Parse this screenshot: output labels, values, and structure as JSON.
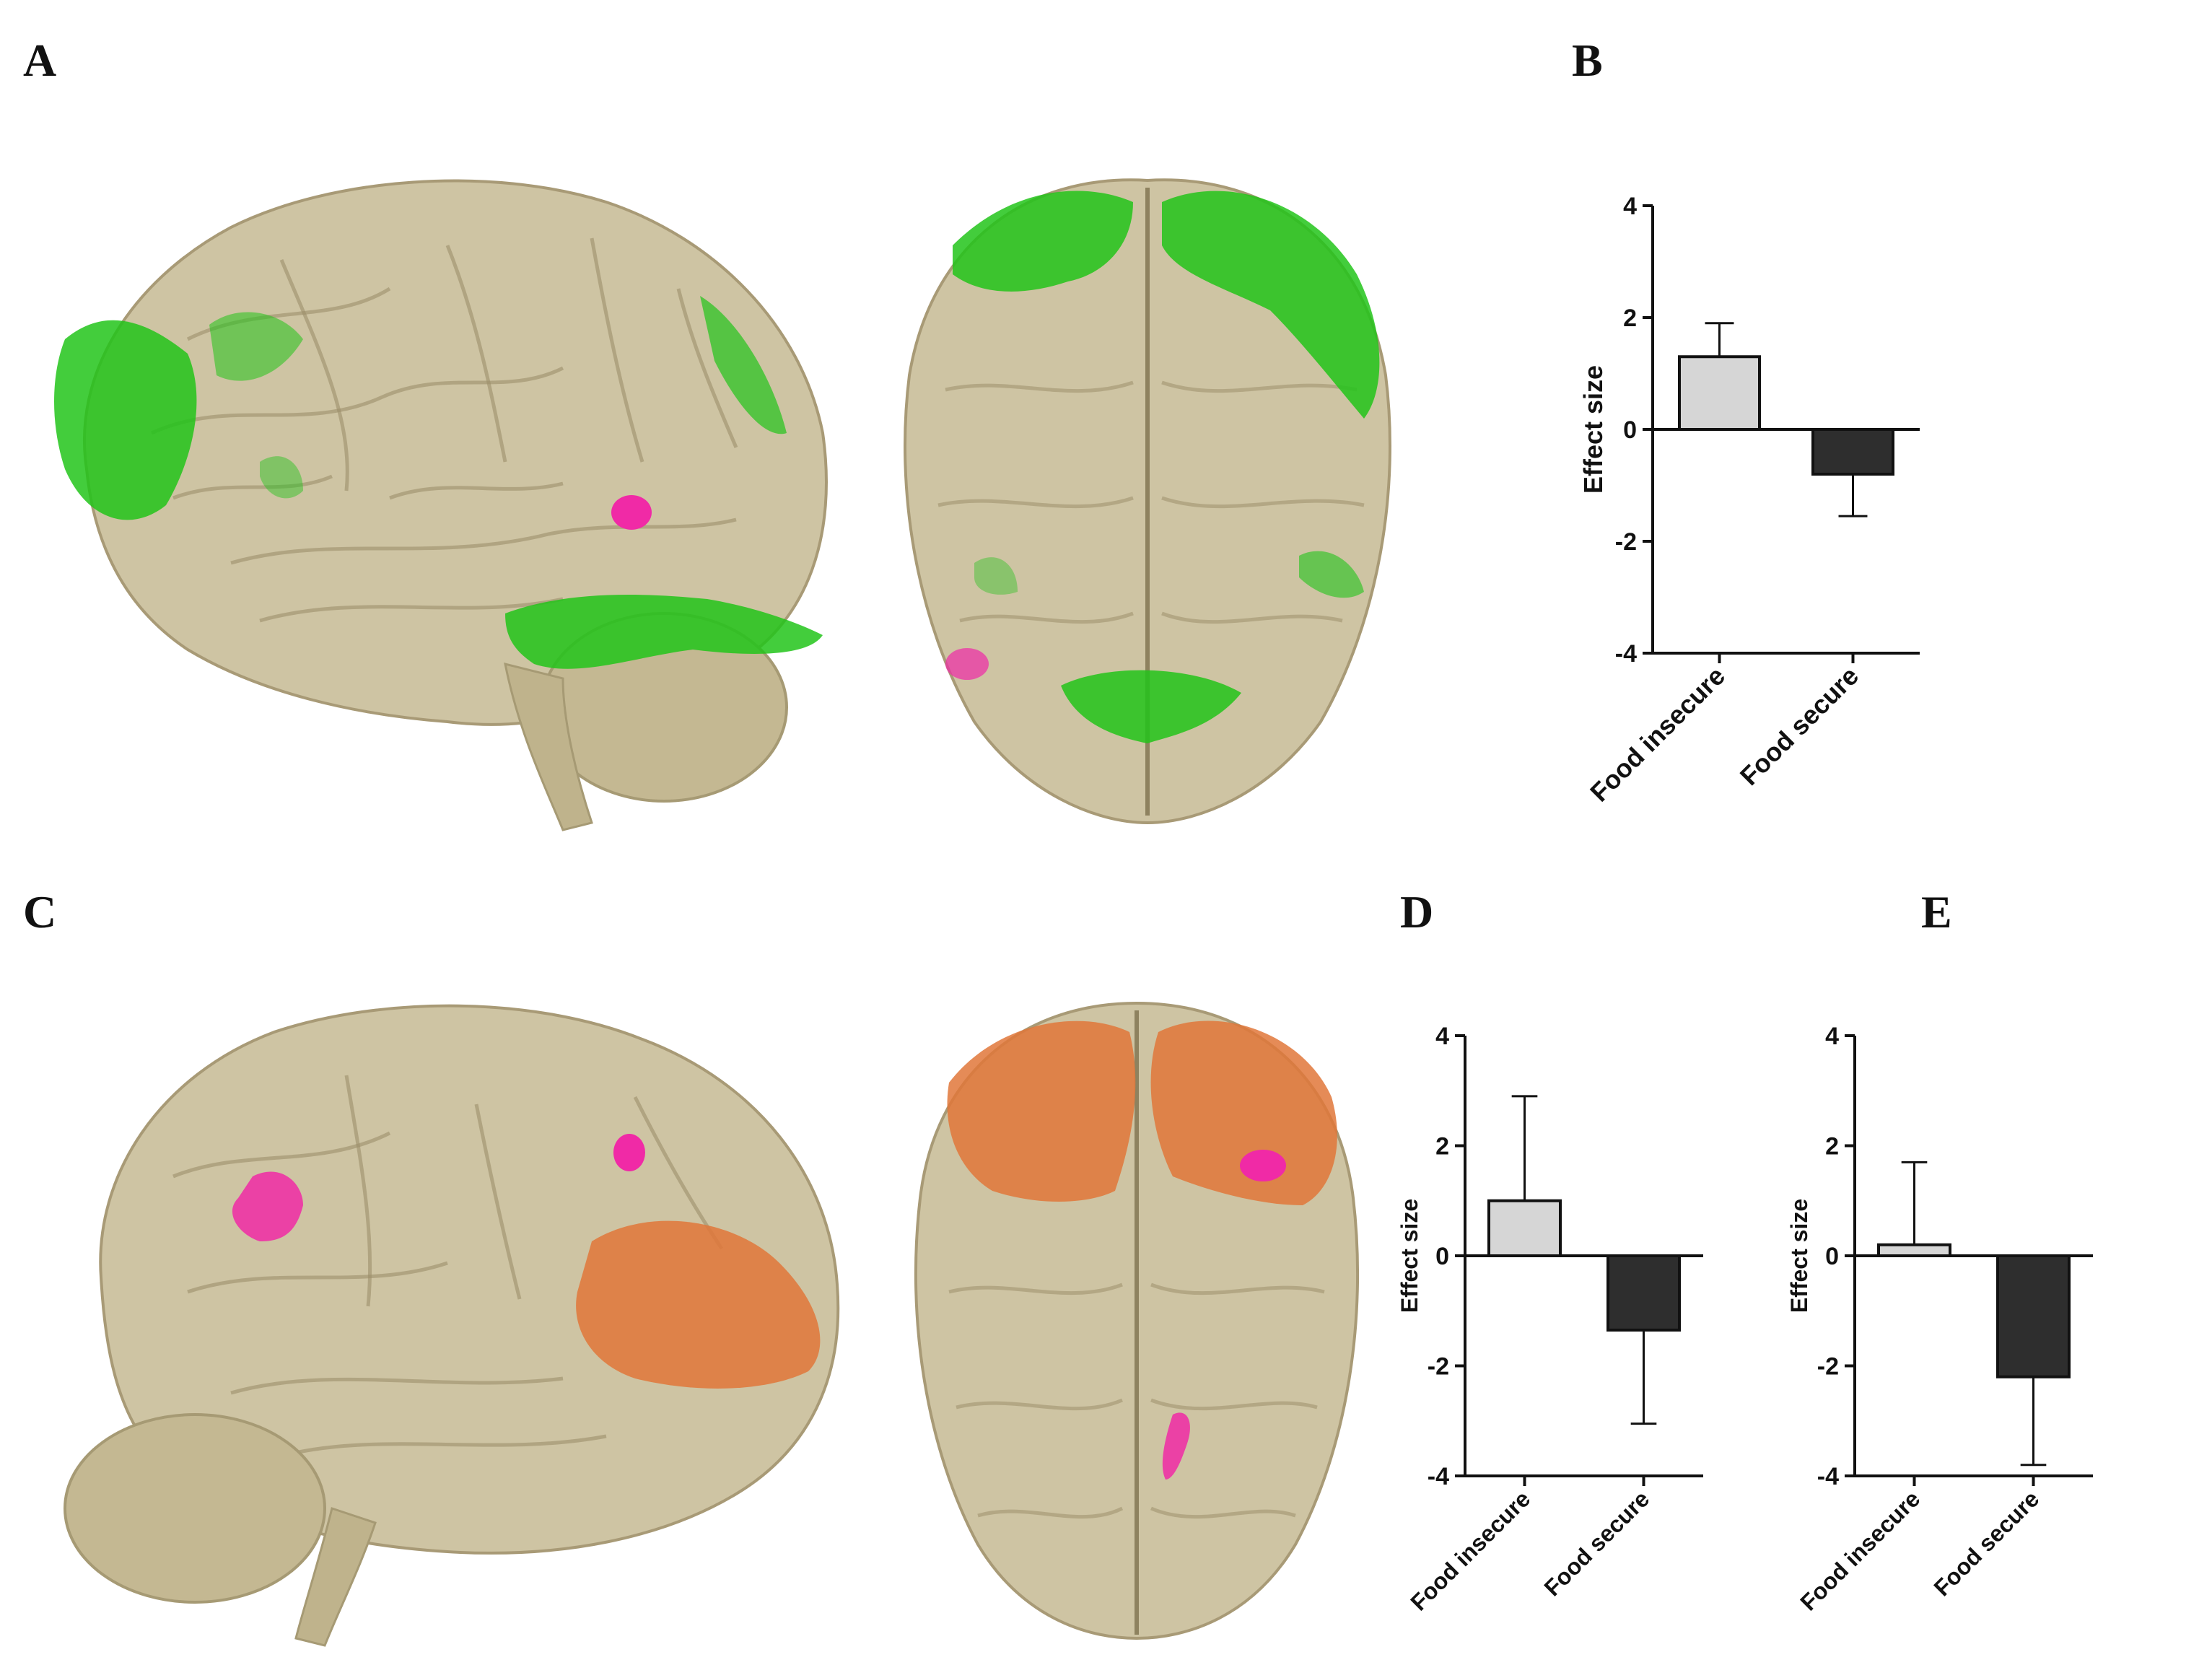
{
  "panels": {
    "a": "A",
    "b": "B",
    "c": "C",
    "d": "D",
    "e": "E"
  },
  "colors": {
    "brain": "#c8bd98",
    "brain_fold": "#a39673",
    "activation_green": "#22c41a",
    "activation_magenta": "#f02aa6",
    "activation_orange": "#e0773a",
    "bar_food_insecure": "#d6d6d6",
    "bar_food_secure": "#2e2e2e"
  },
  "chart_data": [
    {
      "panel": "B",
      "type": "bar",
      "categories": [
        "Food insecure",
        "Food secure"
      ],
      "values": [
        1.3,
        -0.8
      ],
      "error_bars": [
        0.6,
        0.75
      ],
      "error_direction": [
        "up",
        "down"
      ],
      "ylabel": "Effect size",
      "ylim": [
        -4,
        4
      ],
      "yticks": [
        "4",
        "2",
        "0",
        "-2",
        "-4"
      ],
      "colors": [
        "#d6d6d6",
        "#2e2e2e"
      ]
    },
    {
      "panel": "D",
      "type": "bar",
      "categories": [
        "Food insecure",
        "Food secure"
      ],
      "values": [
        1.0,
        -1.35
      ],
      "error_bars": [
        1.9,
        1.7
      ],
      "error_direction": [
        "up",
        "down"
      ],
      "ylabel": "Effect size",
      "ylim": [
        -4,
        4
      ],
      "yticks": [
        "4",
        "2",
        "0",
        "-2",
        "-4"
      ],
      "colors": [
        "#d6d6d6",
        "#2e2e2e"
      ]
    },
    {
      "panel": "E",
      "type": "bar",
      "categories": [
        "Food insecure",
        "Food secure"
      ],
      "values": [
        0.2,
        -2.2
      ],
      "error_bars": [
        1.5,
        1.6
      ],
      "error_direction": [
        "up",
        "down"
      ],
      "ylabel": "Effect size",
      "ylim": [
        -4,
        4
      ],
      "yticks": [
        "4",
        "2",
        "0",
        "-2",
        "-4"
      ],
      "colors": [
        "#d6d6d6",
        "#2e2e2e"
      ]
    }
  ]
}
